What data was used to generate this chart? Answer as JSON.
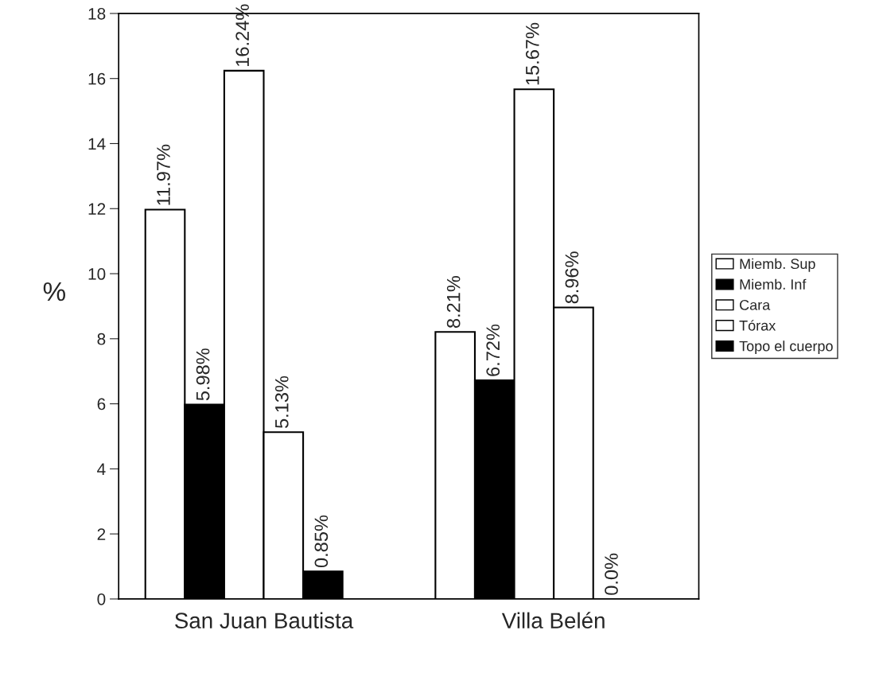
{
  "chart_data": {
    "type": "bar",
    "ylabel": "%",
    "categories": [
      "San Juan Bautista",
      "Villa Belén"
    ],
    "series": [
      {
        "name": "Miemb. Sup",
        "color": "#ffffff",
        "values": [
          11.97,
          8.21
        ],
        "value_labels": [
          "11.97%",
          "8.21%"
        ]
      },
      {
        "name": "Miemb. Inf",
        "color": "#000000",
        "values": [
          5.98,
          6.72
        ],
        "value_labels": [
          "5.98%",
          "6.72%"
        ]
      },
      {
        "name": "Cara",
        "color": "#ffffff",
        "values": [
          16.24,
          15.67
        ],
        "value_labels": [
          "16.24%",
          "15.67%"
        ]
      },
      {
        "name": "Tórax",
        "color": "#ffffff",
        "values": [
          5.13,
          8.96
        ],
        "value_labels": [
          "5.13%",
          "8.96%"
        ]
      },
      {
        "name": "Topo el cuerpo",
        "color": "#000000",
        "values": [
          0.85,
          0.0
        ],
        "value_labels": [
          "0.85%",
          "0.0%"
        ]
      }
    ],
    "ylim": [
      0,
      18
    ],
    "yticks": [
      0,
      2,
      4,
      6,
      8,
      10,
      12,
      14,
      16,
      18
    ],
    "grid": false,
    "legend": "right"
  }
}
